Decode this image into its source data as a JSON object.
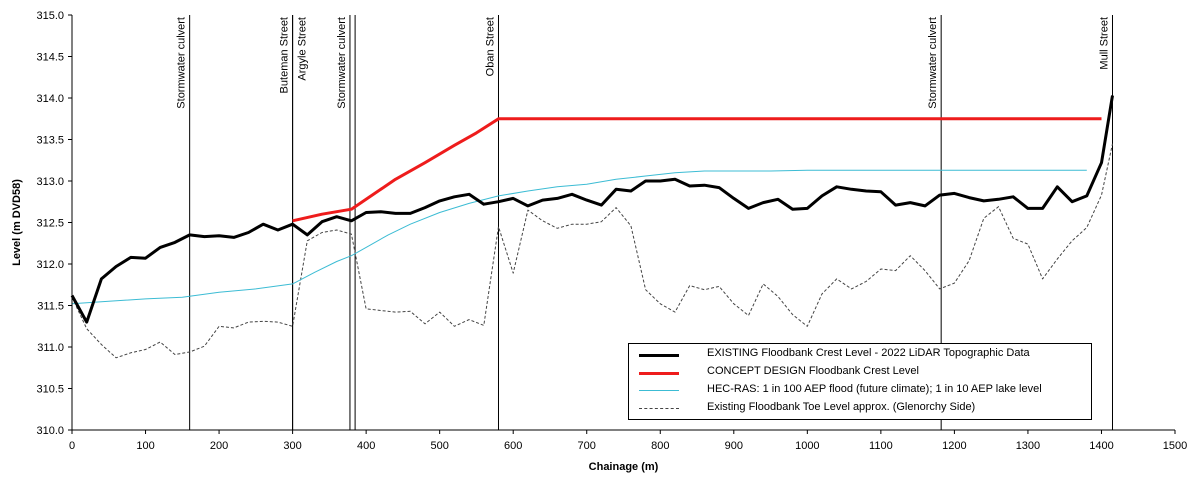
{
  "chart_data": {
    "type": "line",
    "xlabel": "Chainage (m)",
    "ylabel": "Level (m DVD58)",
    "xlim": [
      0,
      1500
    ],
    "ylim": [
      310.0,
      315.0
    ],
    "x_ticks": [
      0,
      100,
      200,
      300,
      400,
      500,
      600,
      700,
      800,
      900,
      1000,
      1100,
      1200,
      1300,
      1400,
      1500
    ],
    "y_ticks": [
      "310.0",
      "310.5",
      "311.0",
      "311.5",
      "312.0",
      "312.5",
      "313.0",
      "313.5",
      "314.0",
      "314.5",
      "315.0"
    ],
    "grid": false,
    "legend_position": "bottom-right",
    "reference_lines": [
      {
        "x": 160,
        "label": "Stormwater culvert"
      },
      {
        "x": 300,
        "label": "Buteman Street"
      },
      {
        "x": 300,
        "label": "Argyle Street"
      },
      {
        "x": 378,
        "label": "Stormwater culvert"
      },
      {
        "x": 385,
        "label": ""
      },
      {
        "x": 580,
        "label": "Oban Street"
      },
      {
        "x": 1182,
        "label": "Stormwater culvert"
      },
      {
        "x": 1415,
        "label": "Mull Street"
      }
    ],
    "series": [
      {
        "name": "EXISTING Floodbank Crest Level - 2022 LiDAR Topographic Data",
        "color": "#000000",
        "style": "solid-thick",
        "x": [
          0,
          20,
          40,
          60,
          80,
          100,
          120,
          140,
          160,
          180,
          200,
          220,
          240,
          260,
          280,
          300,
          320,
          340,
          360,
          380,
          400,
          420,
          440,
          460,
          480,
          500,
          520,
          540,
          560,
          580,
          600,
          620,
          640,
          660,
          680,
          700,
          720,
          740,
          760,
          780,
          800,
          820,
          840,
          860,
          880,
          900,
          920,
          940,
          960,
          980,
          1000,
          1020,
          1040,
          1060,
          1080,
          1100,
          1120,
          1140,
          1160,
          1180,
          1200,
          1220,
          1240,
          1260,
          1280,
          1300,
          1320,
          1340,
          1360,
          1380,
          1400,
          1415
        ],
        "y": [
          311.62,
          311.3,
          311.82,
          311.97,
          312.08,
          312.07,
          312.2,
          312.26,
          312.35,
          312.33,
          312.34,
          312.32,
          312.38,
          312.48,
          312.41,
          312.48,
          312.35,
          312.51,
          312.57,
          312.52,
          312.62,
          312.63,
          312.61,
          312.61,
          312.68,
          312.76,
          312.81,
          312.84,
          312.72,
          312.75,
          312.79,
          312.7,
          312.77,
          312.79,
          312.84,
          312.77,
          312.71,
          312.9,
          312.88,
          313.0,
          313.0,
          313.02,
          312.94,
          312.95,
          312.92,
          312.79,
          312.67,
          312.74,
          312.78,
          312.66,
          312.67,
          312.82,
          312.93,
          312.9,
          312.88,
          312.87,
          312.71,
          312.74,
          312.7,
          312.83,
          312.85,
          312.8,
          312.76,
          312.78,
          312.81,
          312.67,
          312.67,
          312.93,
          312.75,
          312.82,
          313.22,
          314.03
        ]
      },
      {
        "name": "CONCEPT DESIGN Floodbank Crest Level",
        "color": "#ee1c1c",
        "style": "solid-thick",
        "x": [
          300,
          340,
          380,
          400,
          440,
          480,
          520,
          550,
          580,
          600,
          800,
          1000,
          1200,
          1400
        ],
        "y": [
          312.52,
          312.6,
          312.66,
          312.78,
          313.02,
          313.22,
          313.43,
          313.58,
          313.75,
          313.75,
          313.75,
          313.75,
          313.75,
          313.75
        ]
      },
      {
        "name": "HEC-RAS: 1 in 100 AEP flood (future climate); 1 in 10 AEP lake level",
        "color": "#3cbcd4",
        "style": "solid-thin",
        "x": [
          0,
          50,
          100,
          150,
          200,
          250,
          300,
          330,
          360,
          380,
          400,
          430,
          460,
          500,
          540,
          580,
          620,
          660,
          700,
          740,
          780,
          820,
          860,
          900,
          950,
          1000,
          1100,
          1200,
          1300,
          1380
        ],
        "y": [
          311.52,
          311.55,
          311.58,
          311.6,
          311.66,
          311.7,
          311.76,
          311.9,
          312.03,
          312.1,
          312.2,
          312.35,
          312.48,
          312.62,
          312.73,
          312.82,
          312.88,
          312.93,
          312.96,
          313.02,
          313.06,
          313.1,
          313.12,
          313.12,
          313.12,
          313.13,
          313.13,
          313.13,
          313.13,
          313.13
        ]
      },
      {
        "name": "Existing Floodbank Toe Level approx. (Glenorchy Side)",
        "color": "#444444",
        "style": "dashed",
        "x": [
          0,
          20,
          40,
          60,
          80,
          100,
          120,
          140,
          160,
          180,
          200,
          220,
          240,
          260,
          280,
          300,
          320,
          340,
          360,
          380,
          400,
          420,
          440,
          460,
          480,
          500,
          520,
          540,
          560,
          580,
          600,
          620,
          640,
          660,
          680,
          700,
          720,
          740,
          760,
          780,
          800,
          820,
          840,
          860,
          880,
          900,
          920,
          940,
          960,
          980,
          1000,
          1020,
          1040,
          1060,
          1080,
          1100,
          1120,
          1140,
          1160,
          1180,
          1200,
          1220,
          1240,
          1260,
          1280,
          1300,
          1320,
          1340,
          1360,
          1380,
          1400,
          1415
        ],
        "y": [
          311.6,
          311.22,
          311.03,
          310.87,
          310.93,
          310.97,
          311.06,
          310.91,
          310.94,
          311.01,
          311.25,
          311.23,
          311.3,
          311.31,
          311.3,
          311.25,
          312.28,
          312.38,
          312.41,
          312.36,
          311.46,
          311.44,
          311.42,
          311.43,
          311.28,
          311.42,
          311.25,
          311.33,
          311.26,
          312.45,
          311.89,
          312.65,
          312.52,
          312.43,
          312.48,
          312.48,
          312.51,
          312.68,
          312.46,
          311.69,
          311.52,
          311.42,
          311.74,
          311.69,
          311.73,
          311.52,
          311.38,
          311.76,
          311.61,
          311.39,
          311.25,
          311.64,
          311.82,
          311.7,
          311.79,
          311.94,
          311.92,
          312.1,
          311.92,
          311.7,
          311.77,
          312.04,
          312.55,
          312.69,
          312.31,
          312.24,
          311.82,
          312.06,
          312.28,
          312.44,
          312.83,
          313.45
        ]
      }
    ]
  }
}
